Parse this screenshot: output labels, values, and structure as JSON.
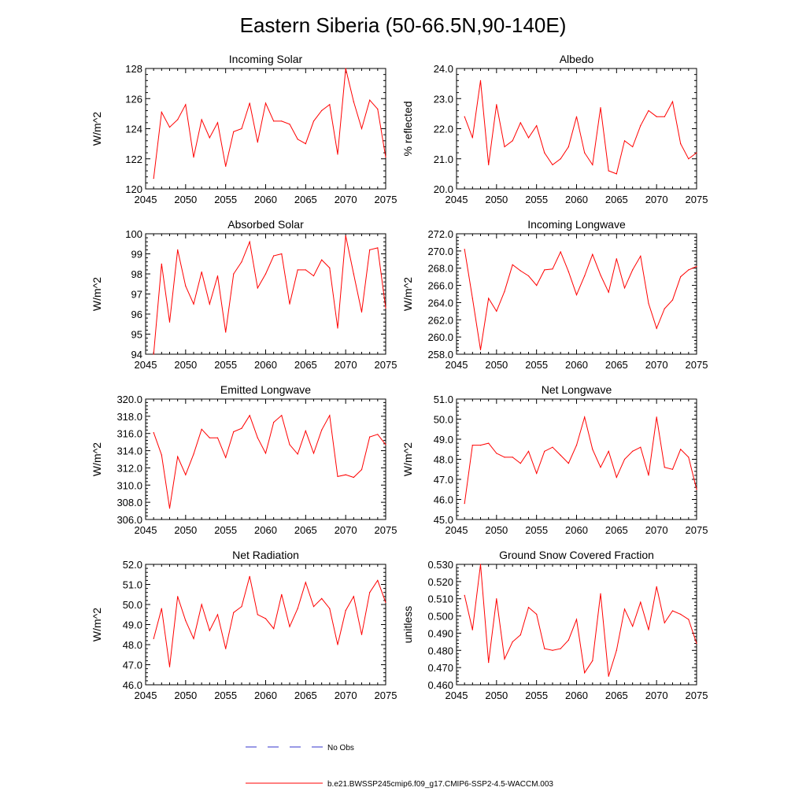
{
  "figure": {
    "title": "Eastern Siberia (50-66.5N,90-140E)"
  },
  "colors": {
    "model": "#ff0000",
    "obs": "#3333cc",
    "axis": "#000000"
  },
  "legend": {
    "obs_label": "No Obs",
    "model_label": "b.e21.BWSSP245cmip6.f09_g17.CMIP6-SSP2-4.5-WACCM.003"
  },
  "chart_data": [
    {
      "type": "line",
      "title": "Incoming Solar",
      "xlabel": "",
      "ylabel": "W/m^2",
      "xlim": [
        2045,
        2075
      ],
      "ylim": [
        120,
        128
      ],
      "xticks": [
        2045,
        2050,
        2055,
        2060,
        2065,
        2070,
        2075
      ],
      "yticks": [
        120,
        122,
        124,
        126,
        128
      ],
      "ydec": 0,
      "x": [
        2046,
        2047,
        2048,
        2049,
        2050,
        2051,
        2052,
        2053,
        2054,
        2055,
        2056,
        2057,
        2058,
        2059,
        2060,
        2061,
        2062,
        2063,
        2064,
        2065,
        2066,
        2067,
        2068,
        2069,
        2070,
        2071,
        2072,
        2073,
        2074,
        2075
      ],
      "series": [
        {
          "name": "b.e21.BWSSP245cmip6.f09_g17.CMIP6-SSP2-4.5-WACCM.003",
          "values": [
            120.7,
            125.1,
            124.1,
            124.6,
            125.6,
            122.1,
            124.6,
            123.4,
            124.4,
            121.5,
            123.8,
            124.0,
            125.7,
            123.1,
            125.7,
            124.5,
            124.5,
            124.3,
            123.3,
            123.0,
            124.5,
            125.2,
            125.6,
            122.3,
            128.0,
            125.8,
            124.0,
            125.9,
            125.3,
            122.1
          ]
        }
      ]
    },
    {
      "type": "line",
      "title": "Albedo",
      "xlabel": "",
      "ylabel": "% reflected",
      "xlim": [
        2045,
        2075
      ],
      "ylim": [
        20,
        24
      ],
      "xticks": [
        2045,
        2050,
        2055,
        2060,
        2065,
        2070,
        2075
      ],
      "yticks": [
        20,
        21,
        22,
        23,
        24
      ],
      "ydec": 1,
      "x": [
        2046,
        2047,
        2048,
        2049,
        2050,
        2051,
        2052,
        2053,
        2054,
        2055,
        2056,
        2057,
        2058,
        2059,
        2060,
        2061,
        2062,
        2063,
        2064,
        2065,
        2066,
        2067,
        2068,
        2069,
        2070,
        2071,
        2072,
        2073,
        2074,
        2075
      ],
      "series": [
        {
          "name": "b.e21.BWSSP245cmip6.f09_g17.CMIP6-SSP2-4.5-WACCM.003",
          "values": [
            22.4,
            21.7,
            23.6,
            20.8,
            22.8,
            21.4,
            21.6,
            22.2,
            21.7,
            22.1,
            21.2,
            20.8,
            21.0,
            21.4,
            22.4,
            21.2,
            20.8,
            22.7,
            20.6,
            20.5,
            21.6,
            21.4,
            22.1,
            22.6,
            22.4,
            22.4,
            22.9,
            21.5,
            21.0,
            21.2
          ]
        }
      ]
    },
    {
      "type": "line",
      "title": "Absorbed Solar",
      "xlabel": "",
      "ylabel": "W/m^2",
      "xlim": [
        2045,
        2075
      ],
      "ylim": [
        94,
        100
      ],
      "xticks": [
        2045,
        2050,
        2055,
        2060,
        2065,
        2070,
        2075
      ],
      "yticks": [
        94,
        95,
        96,
        97,
        98,
        99,
        100
      ],
      "ydec": 0,
      "x": [
        2046,
        2047,
        2048,
        2049,
        2050,
        2051,
        2052,
        2053,
        2054,
        2055,
        2056,
        2057,
        2058,
        2059,
        2060,
        2061,
        2062,
        2063,
        2064,
        2065,
        2066,
        2067,
        2068,
        2069,
        2070,
        2071,
        2072,
        2073,
        2074,
        2075
      ],
      "series": [
        {
          "name": "b.e21.BWSSP245cmip6.f09_g17.CMIP6-SSP2-4.5-WACCM.003",
          "values": [
            94.0,
            98.5,
            95.6,
            99.2,
            97.4,
            96.5,
            98.1,
            96.5,
            97.9,
            95.1,
            98.0,
            98.6,
            99.6,
            97.3,
            98.0,
            98.9,
            99.0,
            96.5,
            98.2,
            98.2,
            97.9,
            98.7,
            98.3,
            95.3,
            99.9,
            98.0,
            96.1,
            99.2,
            99.3,
            96.3
          ]
        }
      ]
    },
    {
      "type": "line",
      "title": "Incoming Longwave",
      "xlabel": "",
      "ylabel": "W/m^2",
      "xlim": [
        2045,
        2075
      ],
      "ylim": [
        258,
        272
      ],
      "xticks": [
        2045,
        2050,
        2055,
        2060,
        2065,
        2070,
        2075
      ],
      "yticks": [
        258,
        260,
        262,
        264,
        266,
        268,
        270,
        272
      ],
      "ydec": 1,
      "x": [
        2046,
        2047,
        2048,
        2049,
        2050,
        2051,
        2052,
        2053,
        2054,
        2055,
        2056,
        2057,
        2058,
        2059,
        2060,
        2061,
        2062,
        2063,
        2064,
        2065,
        2066,
        2067,
        2068,
        2069,
        2070,
        2071,
        2072,
        2073,
        2074,
        2075
      ],
      "series": [
        {
          "name": "b.e21.BWSSP245cmip6.f09_g17.CMIP6-SSP2-4.5-WACCM.003",
          "values": [
            270.2,
            264.5,
            258.5,
            264.5,
            263.0,
            265.3,
            268.4,
            267.7,
            267.1,
            266.0,
            267.8,
            267.9,
            269.9,
            267.6,
            264.9,
            267.1,
            269.6,
            267.2,
            265.2,
            269.1,
            265.7,
            267.8,
            269.4,
            263.9,
            261.0,
            263.3,
            264.3,
            267.0,
            267.8,
            268.2
          ]
        }
      ]
    },
    {
      "type": "line",
      "title": "Emitted Longwave",
      "xlabel": "",
      "ylabel": "W/m^2",
      "xlim": [
        2045,
        2075
      ],
      "ylim": [
        306,
        320
      ],
      "xticks": [
        2045,
        2050,
        2055,
        2060,
        2065,
        2070,
        2075
      ],
      "yticks": [
        306,
        308,
        310,
        312,
        314,
        316,
        318,
        320
      ],
      "ydec": 1,
      "x": [
        2046,
        2047,
        2048,
        2049,
        2050,
        2051,
        2052,
        2053,
        2054,
        2055,
        2056,
        2057,
        2058,
        2059,
        2060,
        2061,
        2062,
        2063,
        2064,
        2065,
        2066,
        2067,
        2068,
        2069,
        2070,
        2071,
        2072,
        2073,
        2074,
        2075
      ],
      "series": [
        {
          "name": "b.e21.BWSSP245cmip6.f09_g17.CMIP6-SSP2-4.5-WACCM.003",
          "values": [
            316.1,
            313.5,
            307.3,
            313.3,
            311.2,
            313.6,
            316.5,
            315.5,
            315.5,
            313.2,
            316.2,
            316.6,
            318.1,
            315.5,
            313.7,
            317.3,
            318.1,
            314.7,
            313.6,
            316.3,
            313.7,
            316.4,
            318.1,
            311.0,
            311.2,
            310.9,
            311.8,
            315.6,
            315.9,
            314.7
          ]
        }
      ]
    },
    {
      "type": "line",
      "title": "Net Longwave",
      "xlabel": "",
      "ylabel": "W/m^2",
      "xlim": [
        2045,
        2075
      ],
      "ylim": [
        45,
        51
      ],
      "xticks": [
        2045,
        2050,
        2055,
        2060,
        2065,
        2070,
        2075
      ],
      "yticks": [
        45,
        46,
        47,
        48,
        49,
        50,
        51
      ],
      "ydec": 1,
      "x": [
        2046,
        2047,
        2048,
        2049,
        2050,
        2051,
        2052,
        2053,
        2054,
        2055,
        2056,
        2057,
        2058,
        2059,
        2060,
        2061,
        2062,
        2063,
        2064,
        2065,
        2066,
        2067,
        2068,
        2069,
        2070,
        2071,
        2072,
        2073,
        2074,
        2075
      ],
      "series": [
        {
          "name": "b.e21.BWSSP245cmip6.f09_g17.CMIP6-SSP2-4.5-WACCM.003",
          "values": [
            45.8,
            48.7,
            48.7,
            48.8,
            48.3,
            48.1,
            48.1,
            47.8,
            48.4,
            47.3,
            48.4,
            48.6,
            48.2,
            47.8,
            48.7,
            50.1,
            48.5,
            47.6,
            48.4,
            47.1,
            48.0,
            48.4,
            48.6,
            47.2,
            50.1,
            47.6,
            47.5,
            48.5,
            48.1,
            46.5
          ]
        }
      ]
    },
    {
      "type": "line",
      "title": "Net Radiation",
      "xlabel": "",
      "ylabel": "W/m^2",
      "xlim": [
        2045,
        2075
      ],
      "ylim": [
        46,
        52
      ],
      "xticks": [
        2045,
        2050,
        2055,
        2060,
        2065,
        2070,
        2075
      ],
      "yticks": [
        46,
        47,
        48,
        49,
        50,
        51,
        52
      ],
      "ydec": 1,
      "x": [
        2046,
        2047,
        2048,
        2049,
        2050,
        2051,
        2052,
        2053,
        2054,
        2055,
        2056,
        2057,
        2058,
        2059,
        2060,
        2061,
        2062,
        2063,
        2064,
        2065,
        2066,
        2067,
        2068,
        2069,
        2070,
        2071,
        2072,
        2073,
        2074,
        2075
      ],
      "series": [
        {
          "name": "b.e21.BWSSP245cmip6.f09_g17.CMIP6-SSP2-4.5-WACCM.003",
          "values": [
            48.3,
            49.8,
            46.9,
            50.4,
            49.2,
            48.3,
            50.0,
            48.7,
            49.5,
            47.8,
            49.6,
            49.9,
            51.4,
            49.5,
            49.3,
            48.8,
            50.5,
            48.9,
            49.8,
            51.1,
            49.9,
            50.3,
            49.8,
            48.0,
            49.7,
            50.4,
            48.5,
            50.6,
            51.2,
            50.1
          ]
        }
      ]
    },
    {
      "type": "line",
      "title": "Ground Snow Covered Fraction",
      "xlabel": "",
      "ylabel": "unitless",
      "xlim": [
        2045,
        2075
      ],
      "ylim": [
        0.46,
        0.53
      ],
      "xticks": [
        2045,
        2050,
        2055,
        2060,
        2065,
        2070,
        2075
      ],
      "yticks": [
        0.46,
        0.47,
        0.48,
        0.49,
        0.5,
        0.51,
        0.52,
        0.53
      ],
      "ydec": 3,
      "x": [
        2046,
        2047,
        2048,
        2049,
        2050,
        2051,
        2052,
        2053,
        2054,
        2055,
        2056,
        2057,
        2058,
        2059,
        2060,
        2061,
        2062,
        2063,
        2064,
        2065,
        2066,
        2067,
        2068,
        2069,
        2070,
        2071,
        2072,
        2073,
        2074,
        2075
      ],
      "series": [
        {
          "name": "b.e21.BWSSP245cmip6.f09_g17.CMIP6-SSP2-4.5-WACCM.003",
          "values": [
            0.512,
            0.492,
            0.53,
            0.473,
            0.51,
            0.475,
            0.485,
            0.489,
            0.505,
            0.501,
            0.481,
            0.48,
            0.481,
            0.486,
            0.498,
            0.467,
            0.474,
            0.513,
            0.465,
            0.48,
            0.504,
            0.494,
            0.508,
            0.492,
            0.517,
            0.496,
            0.503,
            0.501,
            0.498,
            0.484
          ]
        }
      ]
    }
  ]
}
